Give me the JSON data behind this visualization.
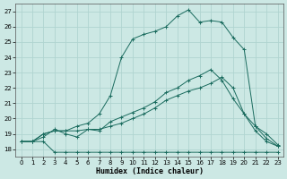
{
  "xlabel": "Humidex (Indice chaleur)",
  "xlim": [
    -0.5,
    23.5
  ],
  "ylim": [
    17.5,
    27.5
  ],
  "yticks": [
    18,
    19,
    20,
    21,
    22,
    23,
    24,
    25,
    26,
    27
  ],
  "xticks": [
    0,
    1,
    2,
    3,
    4,
    5,
    6,
    7,
    8,
    9,
    10,
    11,
    12,
    13,
    14,
    15,
    16,
    17,
    18,
    19,
    20,
    21,
    22,
    23
  ],
  "bg_color": "#cce8e4",
  "grid_color": "#b0d4d0",
  "line_color": "#1a6b5e",
  "line1_y": [
    18.5,
    18.5,
    18.5,
    17.8,
    17.8,
    17.8,
    17.8,
    17.8,
    17.8,
    17.8,
    17.8,
    17.8,
    17.8,
    17.8,
    17.8,
    17.8,
    17.8,
    17.8,
    17.8,
    17.8,
    17.8,
    17.8,
    17.8,
    17.8
  ],
  "line2_y": [
    18.5,
    18.5,
    19.0,
    19.2,
    19.2,
    19.2,
    19.3,
    19.3,
    19.5,
    19.7,
    20.0,
    20.3,
    20.7,
    21.2,
    21.5,
    21.8,
    22.0,
    22.3,
    22.7,
    22.0,
    20.3,
    19.2,
    18.5,
    18.2
  ],
  "line3_y": [
    18.5,
    18.5,
    19.0,
    19.2,
    19.2,
    19.5,
    19.7,
    20.3,
    21.5,
    24.0,
    25.2,
    25.5,
    25.7,
    26.0,
    26.7,
    27.1,
    26.3,
    26.4,
    26.3,
    25.3,
    24.5,
    19.5,
    19.0,
    18.3
  ],
  "line4_y": [
    18.5,
    18.5,
    18.8,
    19.3,
    19.0,
    18.8,
    19.3,
    19.2,
    19.8,
    20.1,
    20.4,
    20.7,
    21.1,
    21.7,
    22.0,
    22.5,
    22.8,
    23.2,
    22.5,
    21.3,
    20.3,
    19.5,
    18.7,
    18.2
  ]
}
